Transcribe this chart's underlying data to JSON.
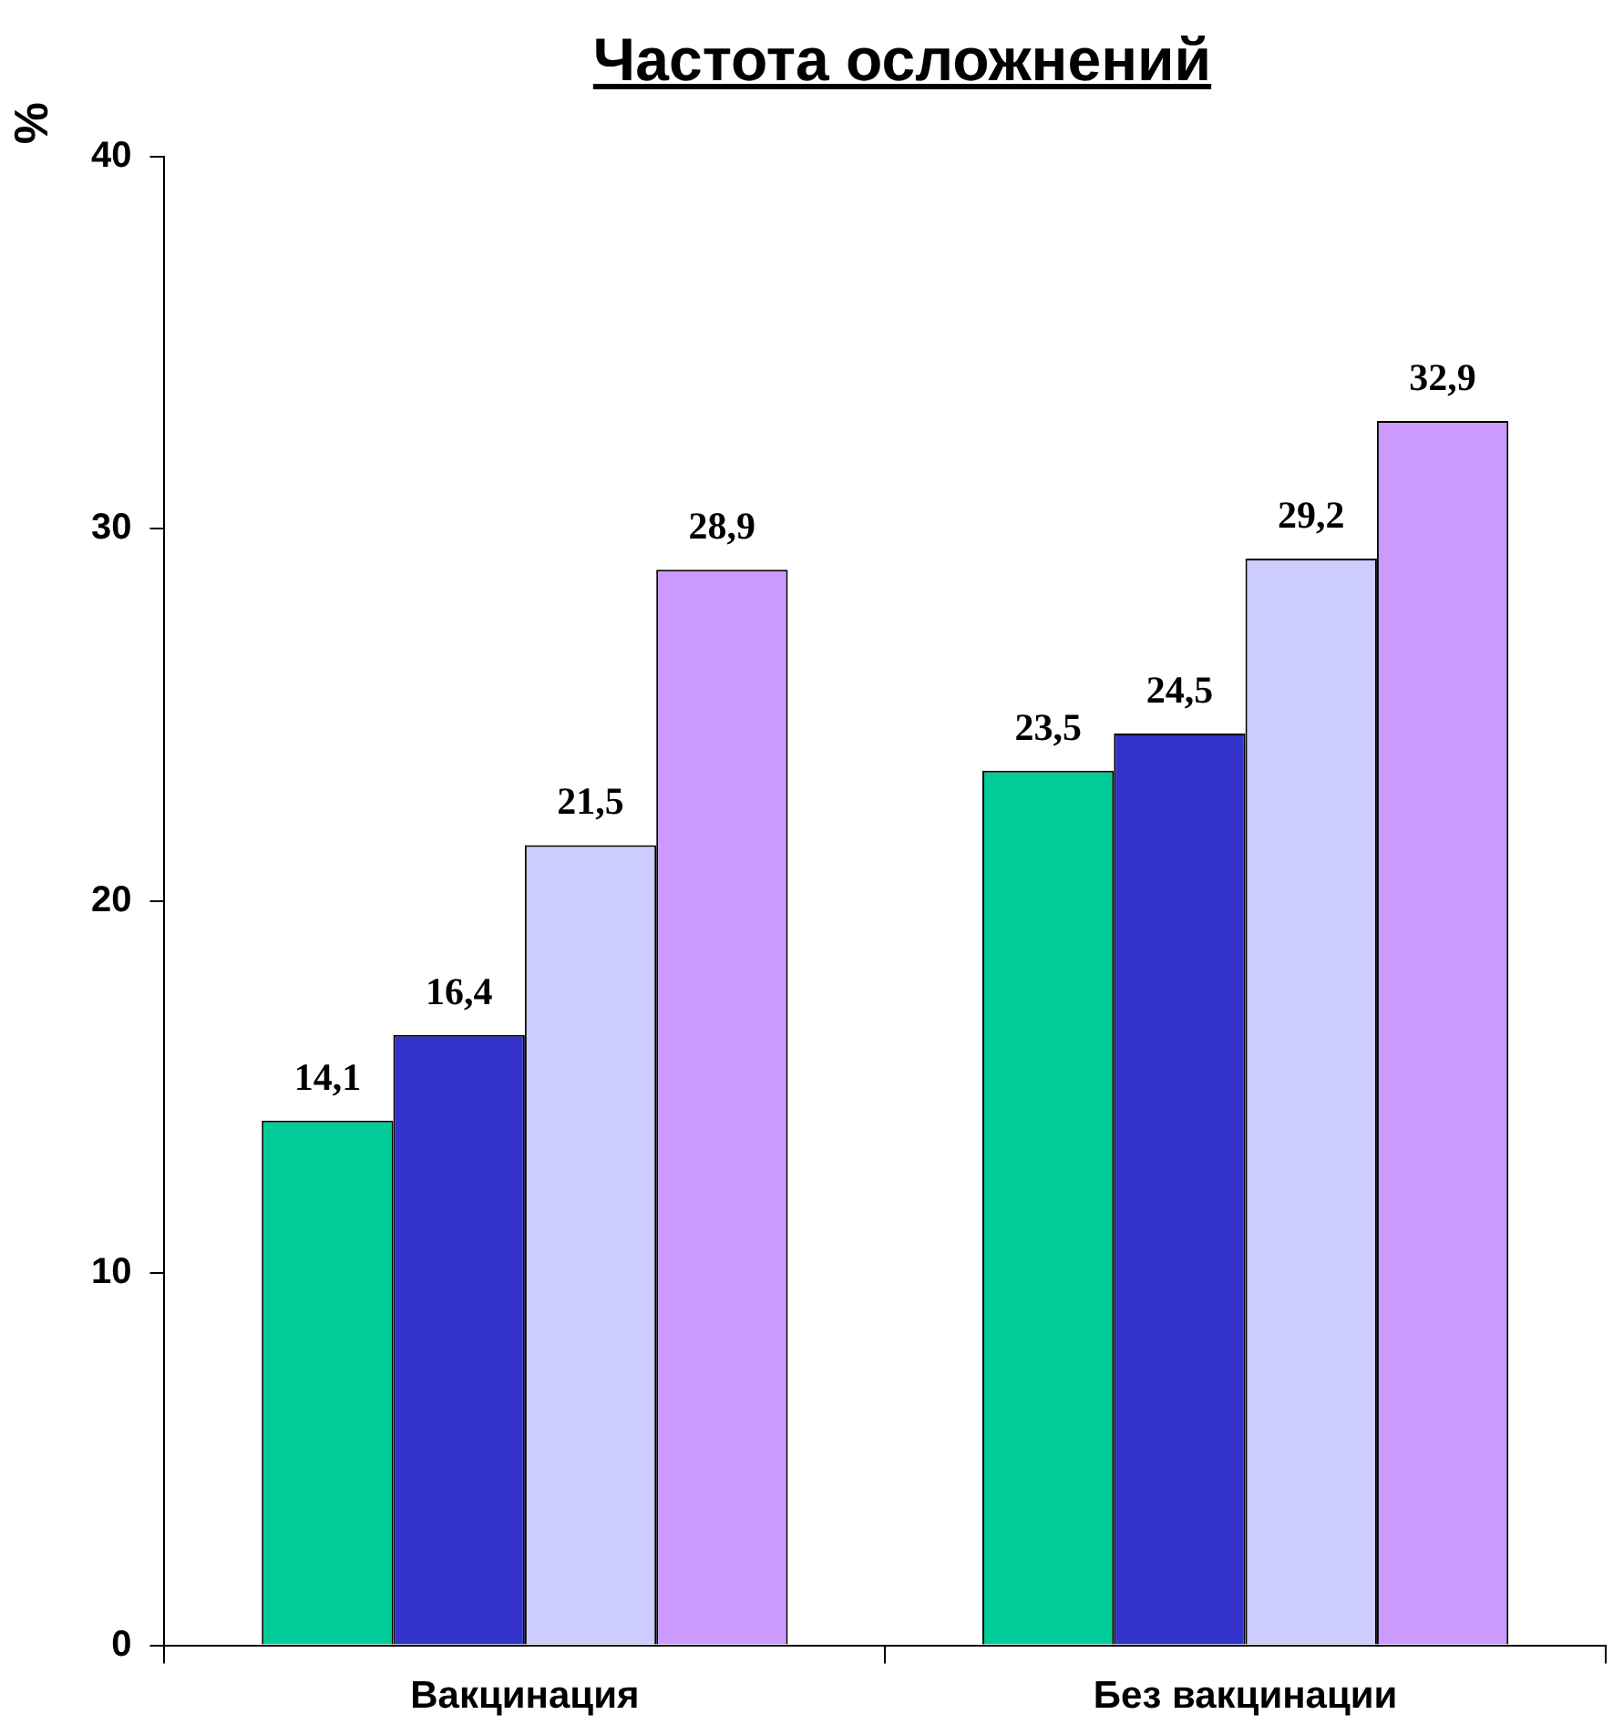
{
  "chart_data": {
    "type": "bar",
    "title": "Частота осложнений",
    "ylabel": "%",
    "categories": [
      "Вакцинация",
      "Без вакцинации"
    ],
    "series": [
      {
        "color": "#00cc99",
        "values": [
          14.1,
          23.5
        ],
        "value_labels": [
          "14,1",
          "23,5"
        ]
      },
      {
        "color": "#3333cc",
        "values": [
          16.4,
          24.5
        ],
        "value_labels": [
          "16,4",
          "24,5"
        ]
      },
      {
        "color": "#ccccff",
        "values": [
          21.5,
          29.2
        ],
        "value_labels": [
          "21,5",
          "29,2"
        ]
      },
      {
        "color": "#cc99ff",
        "values": [
          28.9,
          32.9
        ],
        "value_labels": [
          "28,9",
          "32,9"
        ]
      }
    ],
    "ylim": [
      0,
      40
    ],
    "yticks": [
      0,
      10,
      20,
      30,
      40
    ],
    "grid": false,
    "legend": false
  }
}
